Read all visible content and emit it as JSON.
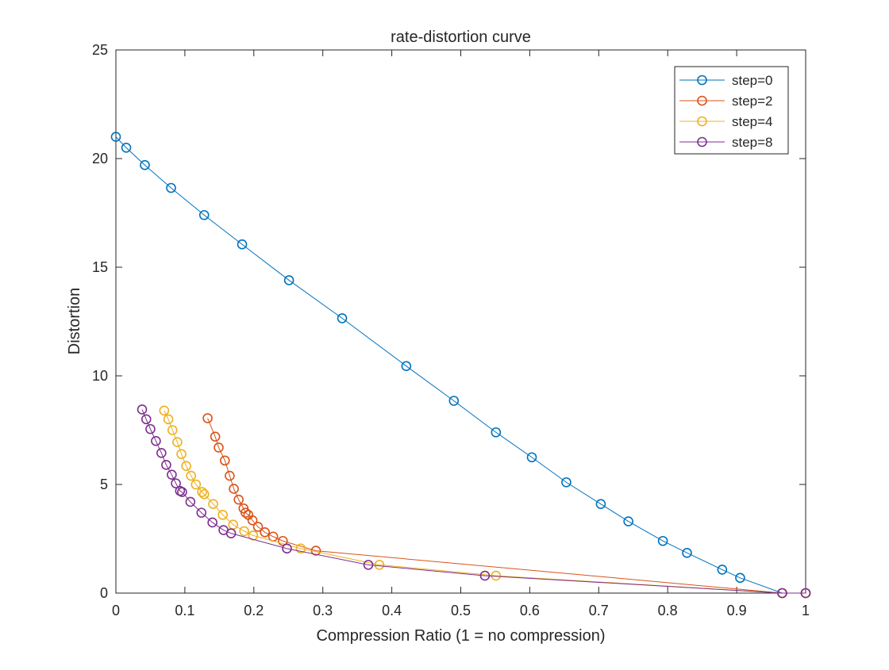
{
  "chart_data": {
    "type": "line",
    "title": "rate-distortion curve",
    "xlabel": "Compression Ratio (1 = no compression)",
    "ylabel": "Distortion",
    "xlim": [
      0,
      1
    ],
    "ylim": [
      0,
      25
    ],
    "xticks": [
      0,
      0.1,
      0.2,
      0.3,
      0.4,
      0.5,
      0.6,
      0.7,
      0.8,
      0.9,
      1
    ],
    "xtick_labels": [
      "0",
      "0.1",
      "0.2",
      "0.3",
      "0.4",
      "0.5",
      "0.6",
      "0.7",
      "0.8",
      "0.9",
      "1"
    ],
    "yticks": [
      0,
      5,
      10,
      15,
      20,
      25
    ],
    "ytick_labels": [
      "0",
      "5",
      "10",
      "15",
      "20",
      "25"
    ],
    "grid": false,
    "legend_position": "top-right",
    "marker": "circle",
    "series": [
      {
        "name": "step=0",
        "color": "#0072BD",
        "x": [
          0,
          0.015,
          0.042,
          0.08,
          0.128,
          0.183,
          0.251,
          0.328,
          0.421,
          0.49,
          0.551,
          0.603,
          0.653,
          0.703,
          0.743,
          0.793,
          0.828,
          0.879,
          0.905,
          0.966,
          1.0
        ],
        "y": [
          21.0,
          20.5,
          19.7,
          18.65,
          17.4,
          16.05,
          14.4,
          12.65,
          10.45,
          8.85,
          7.4,
          6.25,
          5.1,
          4.1,
          3.3,
          2.4,
          1.85,
          1.08,
          0.7,
          0,
          0
        ]
      },
      {
        "name": "step=2",
        "color": "#D95319",
        "x": [
          0.133,
          0.144,
          0.149,
          0.158,
          0.165,
          0.171,
          0.178,
          0.185,
          0.188,
          0.192,
          0.198,
          0.206,
          0.216,
          0.228,
          0.242,
          0.29,
          0.966,
          1.0
        ],
        "y": [
          8.05,
          7.2,
          6.7,
          6.1,
          5.4,
          4.8,
          4.3,
          3.9,
          3.7,
          3.6,
          3.35,
          3.05,
          2.8,
          2.6,
          2.4,
          1.95,
          0,
          0
        ]
      },
      {
        "name": "step=4",
        "color": "#EDB120",
        "x": [
          0.07,
          0.076,
          0.082,
          0.089,
          0.095,
          0.102,
          0.109,
          0.116,
          0.125,
          0.128,
          0.141,
          0.155,
          0.17,
          0.186,
          0.199,
          0.268,
          0.382,
          0.551,
          0.966,
          1.0
        ],
        "y": [
          8.4,
          8.0,
          7.5,
          6.95,
          6.4,
          5.85,
          5.4,
          5.0,
          4.65,
          4.55,
          4.1,
          3.6,
          3.15,
          2.85,
          2.65,
          2.05,
          1.3,
          0.8,
          0,
          0
        ]
      },
      {
        "name": "step=8",
        "color": "#7E2F8E",
        "x": [
          0.038,
          0.044,
          0.05,
          0.058,
          0.066,
          0.073,
          0.081,
          0.087,
          0.093,
          0.096,
          0.108,
          0.124,
          0.14,
          0.156,
          0.167,
          0.248,
          0.366,
          0.535,
          0.966,
          1.0
        ],
        "y": [
          8.45,
          8.0,
          7.55,
          7.0,
          6.45,
          5.9,
          5.45,
          5.05,
          4.7,
          4.65,
          4.2,
          3.7,
          3.25,
          2.9,
          2.75,
          2.05,
          1.3,
          0.8,
          0,
          0
        ]
      }
    ]
  }
}
